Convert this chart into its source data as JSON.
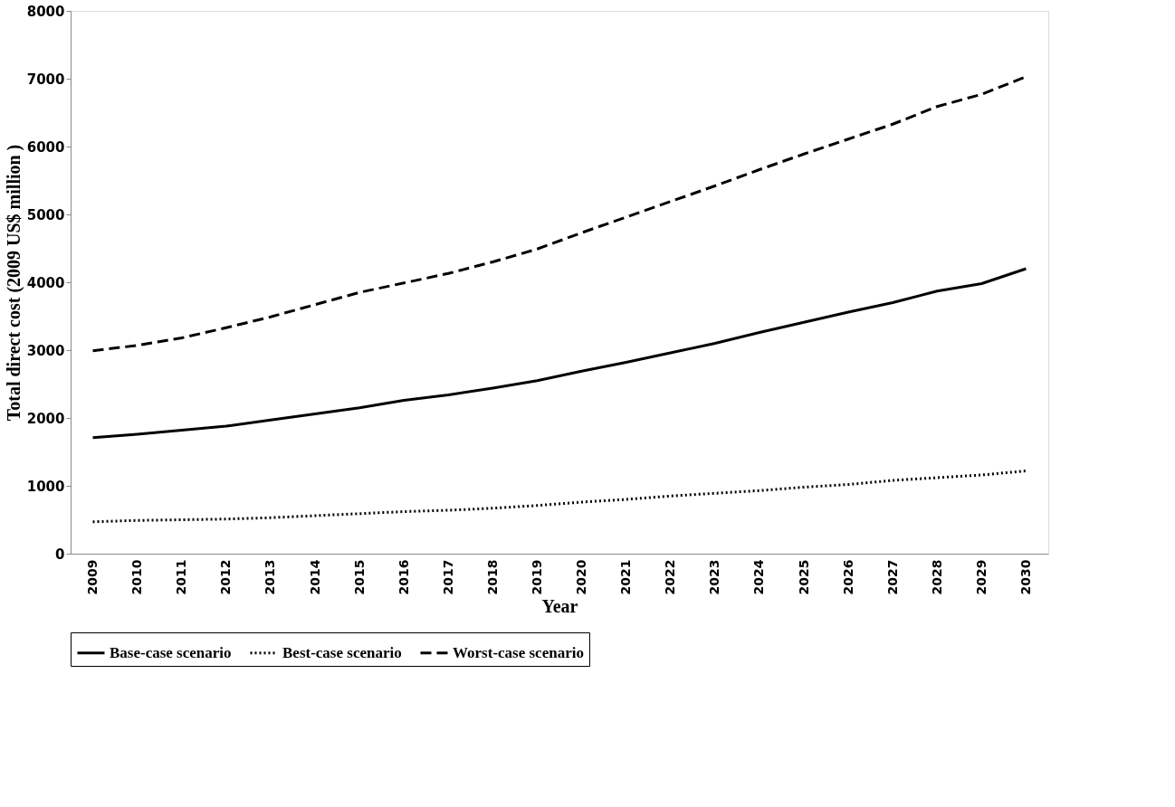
{
  "chart_data": {
    "type": "line",
    "xlabel": "Year",
    "ylabel": "Total direct cost (2009 US$ million )",
    "categories": [
      "2009",
      "2010",
      "2011",
      "2012",
      "2013",
      "2014",
      "2015",
      "2016",
      "2017",
      "2018",
      "2019",
      "2020",
      "2021",
      "2022",
      "2023",
      "2024",
      "2025",
      "2026",
      "2027",
      "2028",
      "2029",
      "2030"
    ],
    "series": [
      {
        "name": "Base-case scenario",
        "color": "#000000",
        "line_style": "solid",
        "values": [
          1710,
          1760,
          1820,
          1880,
          1970,
          2060,
          2150,
          2260,
          2340,
          2440,
          2550,
          2690,
          2820,
          2960,
          3100,
          3260,
          3410,
          3560,
          3700,
          3870,
          3980,
          4200
        ]
      },
      {
        "name": "Best-case scenario",
        "color": "#000000",
        "line_style": "dotted",
        "values": [
          470,
          490,
          500,
          510,
          530,
          560,
          590,
          620,
          640,
          670,
          710,
          760,
          800,
          850,
          890,
          930,
          980,
          1020,
          1080,
          1120,
          1160,
          1220
        ]
      },
      {
        "name": "Worst-case scenario",
        "color": "#000000",
        "line_style": "dashed",
        "values": [
          2990,
          3070,
          3180,
          3330,
          3490,
          3670,
          3850,
          3990,
          4130,
          4300,
          4490,
          4730,
          4960,
          5190,
          5420,
          5660,
          5890,
          6110,
          6330,
          6590,
          6770,
          7030
        ]
      }
    ],
    "ylim": [
      0,
      8000
    ],
    "yticks": [
      0,
      1000,
      2000,
      3000,
      4000,
      5000,
      6000,
      7000,
      8000
    ],
    "grid": false,
    "legend": "bottom",
    "marker": "none"
  }
}
